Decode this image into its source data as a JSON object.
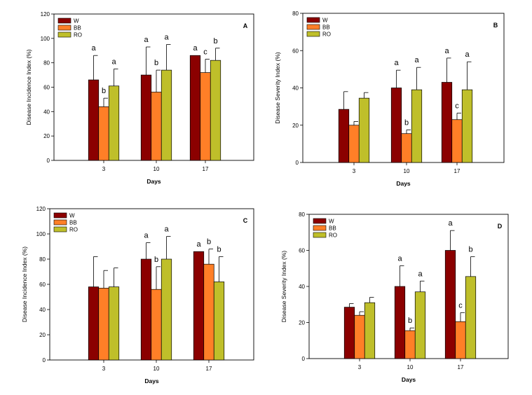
{
  "colors": {
    "W": "#8b0000",
    "BB": "#ff7f27",
    "RO": "#bfbf2a"
  },
  "chart_data": [
    {
      "panel_label": "A",
      "type": "bar",
      "categories": [
        "3",
        "10",
        "17"
      ],
      "xlabel": "Days",
      "ylabel": "Disease Incidence Index (%)",
      "ylim": [
        0,
        120
      ],
      "yticks": [
        0,
        20,
        40,
        60,
        80,
        100,
        120
      ],
      "legend": "top-left",
      "series": [
        {
          "name": "W",
          "values": [
            66,
            70,
            86
          ],
          "errors": [
            20,
            23,
            0
          ],
          "letters": [
            "a",
            "a",
            "a"
          ]
        },
        {
          "name": "BB",
          "values": [
            44,
            56,
            72
          ],
          "errors": [
            7,
            18,
            11
          ],
          "letters": [
            "b",
            "b",
            "c"
          ]
        },
        {
          "name": "RO",
          "values": [
            61,
            74,
            82
          ],
          "errors": [
            14,
            21,
            10
          ],
          "letters": [
            "a",
            "a",
            "b"
          ]
        }
      ]
    },
    {
      "panel_label": "B",
      "type": "bar",
      "categories": [
        "3",
        "10",
        "17"
      ],
      "xlabel": "Days",
      "ylabel": "Disease Severity Index (%)",
      "ylim": [
        0,
        80
      ],
      "yticks": [
        0,
        20,
        40,
        60,
        80
      ],
      "legend": "top-left",
      "series": [
        {
          "name": "W",
          "values": [
            28.5,
            40,
            43
          ],
          "errors": [
            9.5,
            9.5,
            13
          ],
          "letters": [
            "",
            "a",
            "a"
          ]
        },
        {
          "name": "BB",
          "values": [
            20,
            15.5,
            23
          ],
          "errors": [
            2,
            2,
            3.5
          ],
          "letters": [
            "",
            "b",
            "c"
          ]
        },
        {
          "name": "RO",
          "values": [
            34.5,
            39,
            39
          ],
          "errors": [
            3,
            12,
            15
          ],
          "letters": [
            "",
            "a",
            "a"
          ]
        }
      ]
    },
    {
      "panel_label": "C",
      "type": "bar",
      "categories": [
        "3",
        "10",
        "17"
      ],
      "xlabel": "Days",
      "ylabel": "Disease Incidence Index (%)",
      "ylim": [
        0,
        120
      ],
      "yticks": [
        0,
        20,
        40,
        60,
        80,
        100,
        120
      ],
      "legend": "top-left",
      "series": [
        {
          "name": "W",
          "values": [
            58,
            80,
            86
          ],
          "errors": [
            24,
            13,
            0
          ],
          "letters": [
            "",
            "a",
            "a"
          ]
        },
        {
          "name": "BB",
          "values": [
            57,
            56,
            76
          ],
          "errors": [
            14,
            18,
            12
          ],
          "letters": [
            "",
            "b",
            "b"
          ]
        },
        {
          "name": "RO",
          "values": [
            58,
            80,
            62
          ],
          "errors": [
            15,
            18,
            20
          ],
          "letters": [
            "",
            "a",
            "b"
          ]
        }
      ]
    },
    {
      "panel_label": "D",
      "type": "bar",
      "categories": [
        "3",
        "10",
        "17"
      ],
      "xlabel": "Days",
      "ylabel": "Disease Severity Index (%)",
      "ylim": [
        0,
        80
      ],
      "yticks": [
        0,
        20,
        40,
        60,
        80
      ],
      "legend": "top-left",
      "series": [
        {
          "name": "W",
          "values": [
            28.5,
            40,
            60
          ],
          "errors": [
            2,
            11.5,
            11
          ],
          "letters": [
            "",
            "a",
            "a"
          ]
        },
        {
          "name": "BB",
          "values": [
            24,
            15.5,
            20.5
          ],
          "errors": [
            2,
            1.5,
            5
          ],
          "letters": [
            "",
            "b",
            "c"
          ]
        },
        {
          "name": "RO",
          "values": [
            31,
            37,
            45.5
          ],
          "errors": [
            3,
            6,
            11
          ],
          "letters": [
            "",
            "a",
            "b"
          ]
        }
      ]
    }
  ]
}
